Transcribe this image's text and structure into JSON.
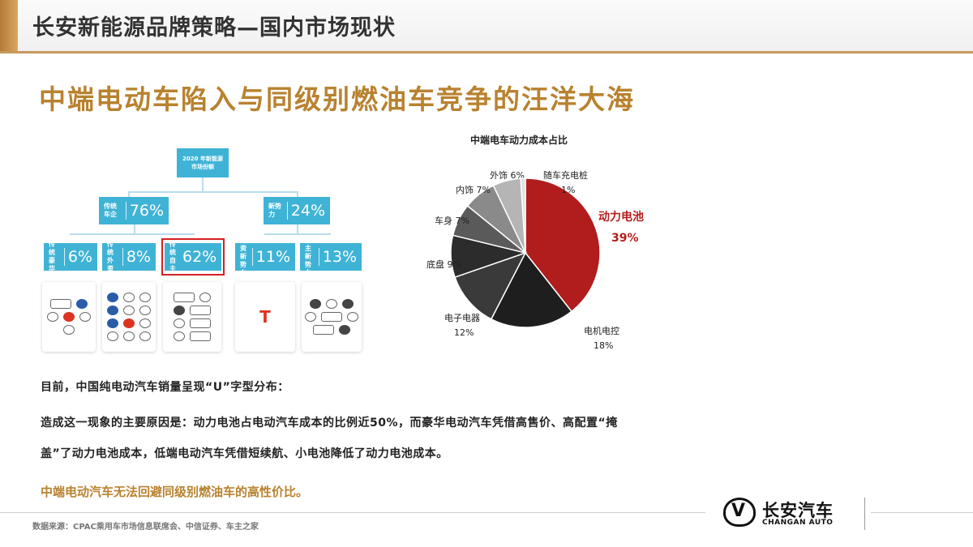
{
  "header": {
    "title": "长安新能源品牌策略—国内市场现状"
  },
  "main_title": "中端电动车陷入与同级别燃油车竞争的汪洋大海",
  "tree": {
    "root_line1": "2020 年新能源",
    "root_line2": "市场份额",
    "level1": [
      {
        "label": "传统\n车企",
        "pct": "76%"
      },
      {
        "label": "新势力",
        "pct": "24%"
      }
    ],
    "level2": [
      {
        "label": "传统\n豪华",
        "pct": "6%"
      },
      {
        "label": "传统\n外资",
        "pct": "8%"
      },
      {
        "label": "传统\n自主",
        "pct": "62%"
      },
      {
        "label": "外资\n新势力",
        "pct": "11%"
      },
      {
        "label": "自主\n新势力",
        "pct": "13%"
      }
    ],
    "highlight_color": "#d62020",
    "node_color": "#3fb3d6"
  },
  "chart_data": {
    "type": "pie",
    "title": "中端电车动力成本占比",
    "slices": [
      {
        "name": "动力电池",
        "value": 39,
        "label": "39%",
        "color": "#b11d1d"
      },
      {
        "name": "电机电控",
        "value": 18,
        "label": "18%",
        "color": "#1e1e1e"
      },
      {
        "name": "电子电器",
        "value": 12,
        "label": "12%",
        "color": "#3a3a3a"
      },
      {
        "name": "底盘",
        "value": 9,
        "label": "9%",
        "color": "#2c2c2c"
      },
      {
        "name": "车身",
        "value": 7,
        "label": "7%",
        "color": "#5a5a5a"
      },
      {
        "name": "内饰",
        "value": 7,
        "label": "7%",
        "color": "#8a8a8a"
      },
      {
        "name": "外饰",
        "value": 6,
        "label": "6%",
        "color": "#b5b5b5"
      },
      {
        "name": "随车充电桩",
        "value": 1,
        "label": "1%",
        "color": "#e0e0e0"
      }
    ]
  },
  "body": {
    "line1": "目前，中国纯电动汽车销量呈现“U”字型分布：",
    "line2": "造成这一现象的主要原因是：动力电池占电动汽车成本的比例近50%，而豪华电动汽车凭借高售价、高配置“掩",
    "line3": "盖”了动力电池成本，低端电动汽车凭借短续航、小电池降低了动力电池成本。",
    "conclusion": "中端电动汽车无法回避同级别燃油车的高性价比。"
  },
  "footer": {
    "source": "数据来源：CPAC乘用车市场信息联席会、中信证券、车主之家",
    "brand_cn": "长安汽车",
    "brand_en": "CHANGAN AUTO",
    "brand_mark": "V"
  }
}
